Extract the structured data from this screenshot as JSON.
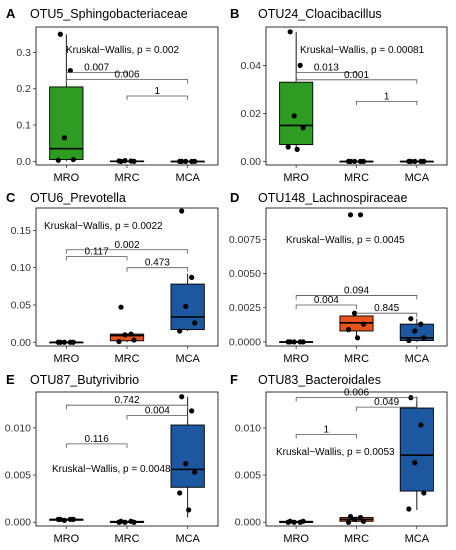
{
  "colors": {
    "MRO": "#2e9b22",
    "MRC": "#e8531d",
    "MCA": "#1c57a0"
  },
  "chart_data": [
    {
      "type": "box",
      "letter": "A",
      "title": "OTU5_Sphingobacteriaceae",
      "categories": [
        "MRO",
        "MRC",
        "MCA"
      ],
      "ylim": [
        -0.01,
        0.37
      ],
      "yticks": [
        0.0,
        0.1,
        0.2,
        0.3
      ],
      "ytick_labels": [
        "0.0",
        "0.1",
        "0.2",
        "0.3"
      ],
      "kruskal": "Kruskal−Wallis, p = 0.002",
      "boxes": [
        {
          "q1": 0.005,
          "median": 0.035,
          "q3": 0.205,
          "whisker_low": 0.0,
          "whisker_high": 0.35,
          "points": [
            0.35,
            0.25,
            0.065,
            0.005,
            0.003
          ]
        },
        {
          "q1": 0.0,
          "median": 0.0,
          "q3": 0.001,
          "whisker_low": 0.0,
          "whisker_high": 0.002,
          "points": [
            0.0,
            0.001,
            0.002,
            0.0,
            0.001
          ]
        },
        {
          "q1": 0.0,
          "median": 0.0,
          "q3": 0.0,
          "whisker_low": 0.0,
          "whisker_high": 0.0,
          "points": [
            0.0,
            0.0,
            0.0,
            0.0,
            0.0
          ]
        }
      ],
      "comparisons": [
        {
          "from": 0,
          "to": 1,
          "y": 0.245,
          "label": "0.007"
        },
        {
          "from": 0,
          "to": 2,
          "y": 0.225,
          "label": "0.006"
        },
        {
          "from": 1,
          "to": 2,
          "y": 0.18,
          "label": "1"
        }
      ]
    },
    {
      "type": "box",
      "letter": "B",
      "title": "OTU24_Cloacibacillus",
      "categories": [
        "MRO",
        "MRC",
        "MCA"
      ],
      "ylim": [
        -0.0015,
        0.056
      ],
      "yticks": [
        0.0,
        0.02,
        0.04
      ],
      "ytick_labels": [
        "0.00",
        "0.02",
        "0.04"
      ],
      "kruskal": "Kruskal−Wallis, p = 0.00081",
      "boxes": [
        {
          "q1": 0.007,
          "median": 0.015,
          "q3": 0.033,
          "whisker_low": 0.005,
          "whisker_high": 0.054,
          "points": [
            0.054,
            0.04,
            0.019,
            0.014,
            0.006,
            0.005
          ]
        },
        {
          "q1": 0.0,
          "median": 0.0,
          "q3": 0.0,
          "whisker_low": 0.0,
          "whisker_high": 0.0,
          "points": [
            0.0,
            0.0,
            0.0,
            0.0,
            0.0
          ]
        },
        {
          "q1": 0.0,
          "median": 0.0,
          "q3": 0.0,
          "whisker_low": 0.0,
          "whisker_high": 0.0,
          "points": [
            0.0,
            0.0,
            0.0,
            0.0,
            0.0
          ]
        }
      ],
      "comparisons": [
        {
          "from": 0,
          "to": 1,
          "y": 0.037,
          "label": "0.013"
        },
        {
          "from": 0,
          "to": 2,
          "y": 0.034,
          "label": "0.001"
        },
        {
          "from": 1,
          "to": 2,
          "y": 0.025,
          "label": "1"
        }
      ]
    },
    {
      "type": "box",
      "letter": "C",
      "title": "OTU6_Prevotella",
      "categories": [
        "MRO",
        "MRC",
        "MCA"
      ],
      "ylim": [
        -0.005,
        0.18
      ],
      "yticks": [
        0.0,
        0.05,
        0.1,
        0.15
      ],
      "ytick_labels": [
        "0.00",
        "0.05",
        "0.10",
        "0.15"
      ],
      "kruskal": "Kruskal−Wallis, p = 0.0022",
      "boxes": [
        {
          "q1": 0.0,
          "median": 0.0,
          "q3": 0.0,
          "whisker_low": 0.0,
          "whisker_high": 0.0,
          "points": [
            0.0,
            0.0,
            0.0,
            0.0,
            0.0
          ]
        },
        {
          "q1": 0.002,
          "median": 0.009,
          "q3": 0.011,
          "whisker_low": 0.0,
          "whisker_high": 0.012,
          "points": [
            0.047,
            0.011,
            0.01,
            0.003,
            0.001
          ]
        },
        {
          "q1": 0.017,
          "median": 0.034,
          "q3": 0.078,
          "whisker_low": 0.015,
          "whisker_high": 0.092,
          "points": [
            0.176,
            0.087,
            0.048,
            0.026,
            0.015
          ]
        }
      ],
      "comparisons": [
        {
          "from": 0,
          "to": 1,
          "y": 0.115,
          "label": "0.117"
        },
        {
          "from": 0,
          "to": 2,
          "y": 0.124,
          "label": "0.002"
        },
        {
          "from": 1,
          "to": 2,
          "y": 0.1,
          "label": "0.473"
        }
      ]
    },
    {
      "type": "box",
      "letter": "D",
      "title": "OTU148_Lachnospiraceae",
      "categories": [
        "MRO",
        "MRC",
        "MCA"
      ],
      "ylim": [
        -0.0003,
        0.0098
      ],
      "yticks": [
        0.0,
        0.0025,
        0.005,
        0.0075
      ],
      "ytick_labels": [
        "0.0000",
        "0.0025",
        "0.0050",
        "0.0075"
      ],
      "kruskal": "Kruskal−Wallis, p = 0.0045",
      "boxes": [
        {
          "q1": 0.0,
          "median": 0.0,
          "q3": 0.0,
          "whisker_low": 0.0,
          "whisker_high": 0.0,
          "points": [
            0.0,
            0.0,
            0.0,
            0.0,
            0.0
          ]
        },
        {
          "q1": 0.0008,
          "median": 0.0014,
          "q3": 0.0019,
          "whisker_low": 0.0002,
          "whisker_high": 0.0022,
          "points": [
            0.0093,
            0.0093,
            0.0021,
            0.0013,
            0.0009,
            0.0003
          ]
        },
        {
          "q1": 0.0001,
          "median": 0.0003,
          "q3": 0.0013,
          "whisker_low": 0.0,
          "whisker_high": 0.0017,
          "points": [
            0.0017,
            0.0013,
            0.0008,
            0.0003,
            0.0001
          ]
        }
      ],
      "comparisons": [
        {
          "from": 0,
          "to": 1,
          "y": 0.0027,
          "label": "0.004"
        },
        {
          "from": 0,
          "to": 2,
          "y": 0.0034,
          "label": "0.094"
        },
        {
          "from": 1,
          "to": 2,
          "y": 0.0021,
          "label": "0.845"
        }
      ]
    },
    {
      "type": "box",
      "letter": "E",
      "title": "OTU87_Butyrivibrio",
      "categories": [
        "MRO",
        "MRC",
        "MCA"
      ],
      "ylim": [
        -0.0004,
        0.0138
      ],
      "yticks": [
        0.0,
        0.005,
        0.01
      ],
      "ytick_labels": [
        "0.000",
        "0.005",
        "0.010"
      ],
      "kruskal": "Kruskal−Wallis, p = 0.0048",
      "boxes": [
        {
          "q1": 0.0002,
          "median": 0.0003,
          "q3": 0.0003,
          "whisker_low": 0.0002,
          "whisker_high": 0.0003,
          "points": [
            0.0003,
            0.0003,
            0.0002,
            0.0003,
            0.0003
          ]
        },
        {
          "q1": 0.0,
          "median": 0.0,
          "q3": 0.0001,
          "whisker_low": 0.0,
          "whisker_high": 0.0001,
          "points": [
            0.0001,
            0.0001,
            0.0,
            0.0,
            0.0
          ]
        },
        {
          "q1": 0.0037,
          "median": 0.0056,
          "q3": 0.0103,
          "whisker_low": 0.0005,
          "whisker_high": 0.0133,
          "points": [
            0.0133,
            0.0118,
            0.0062,
            0.0053,
            0.0031,
            0.0013
          ]
        }
      ],
      "comparisons": [
        {
          "from": 0,
          "to": 1,
          "y": 0.0083,
          "label": "0.116"
        },
        {
          "from": 0,
          "to": 2,
          "y": 0.0124,
          "label": "0.742"
        },
        {
          "from": 1,
          "to": 2,
          "y": 0.0113,
          "label": "0.004"
        }
      ]
    },
    {
      "type": "box",
      "letter": "F",
      "title": "OTU83_Bacteroidales",
      "categories": [
        "MRO",
        "MRC",
        "MCA"
      ],
      "ylim": [
        -0.0004,
        0.0138
      ],
      "yticks": [
        0.0,
        0.005,
        0.01
      ],
      "ytick_labels": [
        "0.000",
        "0.005",
        "0.010"
      ],
      "kruskal": "Kruskal−Wallis, p = 0.0053",
      "boxes": [
        {
          "q1": 0.0,
          "median": 0.0,
          "q3": 0.0001,
          "whisker_low": 0.0,
          "whisker_high": 0.0001,
          "points": [
            0.0001,
            0.0,
            0.0,
            0.0001,
            0.0
          ]
        },
        {
          "q1": 0.0001,
          "median": 0.0003,
          "q3": 0.0005,
          "whisker_low": 0.0,
          "whisker_high": 0.0006,
          "points": [
            0.0006,
            0.0005,
            0.0003,
            0.0001,
            0.0
          ]
        },
        {
          "q1": 0.0033,
          "median": 0.0071,
          "q3": 0.0121,
          "whisker_low": 0.0013,
          "whisker_high": 0.0133,
          "points": [
            0.0132,
            0.0103,
            0.0063,
            0.0031,
            0.0014
          ]
        }
      ],
      "comparisons": [
        {
          "from": 0,
          "to": 1,
          "y": 0.0093,
          "label": "1"
        },
        {
          "from": 0,
          "to": 2,
          "y": 0.0132,
          "label": "0.006"
        },
        {
          "from": 1,
          "to": 2,
          "y": 0.0122,
          "label": "0.049"
        }
      ]
    }
  ]
}
